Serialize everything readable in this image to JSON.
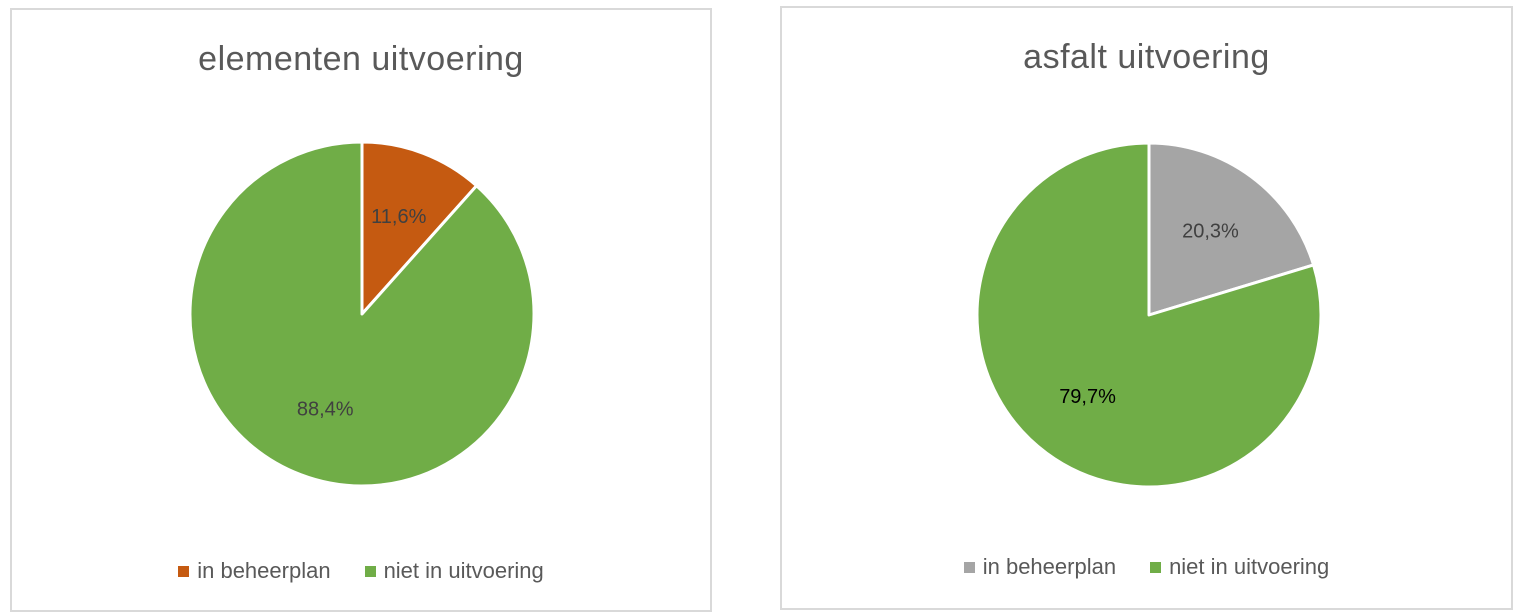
{
  "chart_data": [
    {
      "type": "pie",
      "title": "elementen uitvoering",
      "categories": [
        "in beheerplan",
        "niet in uitvoering"
      ],
      "values": [
        11.6,
        88.4
      ],
      "labels": [
        "11,6%",
        "88,4%"
      ],
      "colors": [
        "#c55a11",
        "#70ad47"
      ],
      "label_colors": [
        "#404040",
        "#404040"
      ],
      "legend": "bottom"
    },
    {
      "type": "pie",
      "title": "asfalt uitvoering",
      "categories": [
        "in beheerplan",
        "niet in uitvoering"
      ],
      "values": [
        20.3,
        79.7
      ],
      "labels": [
        "20,3%",
        "79,7%"
      ],
      "colors": [
        "#a5a5a5",
        "#70ad47"
      ],
      "label_colors": [
        "#404040",
        "#000000"
      ],
      "legend": "bottom"
    }
  ]
}
